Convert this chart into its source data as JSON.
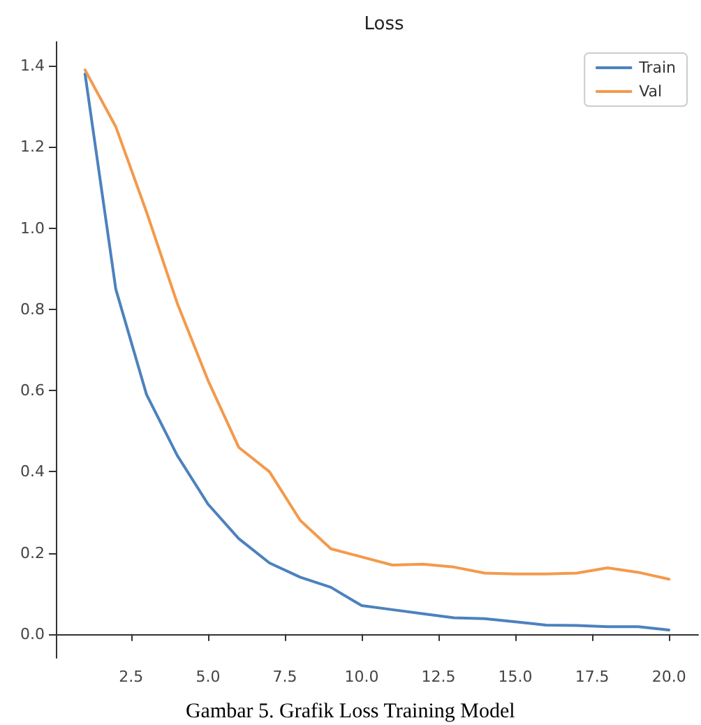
{
  "chart_data": {
    "type": "line",
    "title": "Loss",
    "x": [
      1,
      2,
      3,
      4,
      5,
      6,
      7,
      8,
      9,
      10,
      11,
      12,
      13,
      14,
      15,
      16,
      17,
      18,
      19,
      20
    ],
    "series": [
      {
        "name": "Train",
        "color": "#4c82bd",
        "values": [
          1.38,
          0.85,
          0.59,
          0.44,
          0.32,
          0.235,
          0.175,
          0.14,
          0.115,
          0.07,
          0.06,
          0.05,
          0.04,
          0.038,
          0.03,
          0.022,
          0.021,
          0.018,
          0.018,
          0.01
        ]
      },
      {
        "name": "Val",
        "color": "#f39a4c",
        "values": [
          1.39,
          1.25,
          1.04,
          0.815,
          0.625,
          0.46,
          0.4,
          0.28,
          0.21,
          0.19,
          0.17,
          0.172,
          0.165,
          0.15,
          0.148,
          0.148,
          0.15,
          0.163,
          0.152,
          0.135
        ]
      }
    ],
    "xlim": [
      0.05,
      20.95
    ],
    "xticks": [
      2.5,
      {
        "value": 5,
        "label": "5.0"
      },
      7.5,
      {
        "value": 10,
        "label": "10.0"
      },
      12.5,
      {
        "value": 15,
        "label": "15.0"
      },
      17.5,
      {
        "value": 20,
        "label": "20.0"
      }
    ],
    "ylim": [
      -0.059,
      1.459
    ],
    "yticks": [
      {
        "value": 0,
        "label": "0.0"
      },
      0.2,
      0.4,
      0.6,
      0.8,
      {
        "value": 1,
        "label": "1.0"
      },
      1.2,
      1.4
    ],
    "grid": false,
    "legend": "top right",
    "marker": "none",
    "line_style": "solid",
    "annotations": [
      "Gambar 5. Grafik Loss Training Model"
    ]
  }
}
